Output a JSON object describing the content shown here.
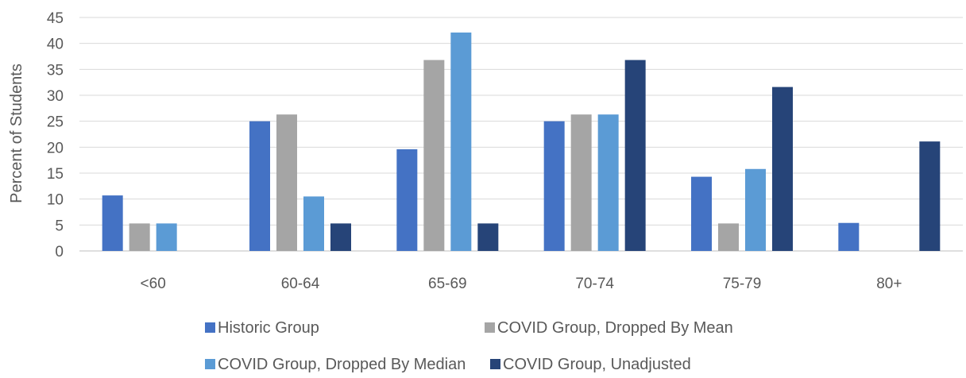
{
  "chart_data": {
    "type": "bar",
    "title": "",
    "xlabel": "",
    "ylabel": "Percent of Students",
    "ylim": [
      0,
      45
    ],
    "yticks": [
      0,
      5,
      10,
      15,
      20,
      25,
      30,
      35,
      40,
      45
    ],
    "grid": true,
    "legend_position": "bottom",
    "categories": [
      "<60",
      "60-64",
      "65-69",
      "70-74",
      "75-79",
      "80+"
    ],
    "series": [
      {
        "name": "Historic Group",
        "color": "#4472C4",
        "values": [
          10.7,
          25.0,
          19.6,
          25.0,
          14.3,
          5.4
        ]
      },
      {
        "name": "COVID Group, Dropped By Mean",
        "color": "#A5A5A5",
        "values": [
          5.3,
          26.3,
          36.8,
          26.3,
          5.3,
          0
        ]
      },
      {
        "name": "COVID Group, Dropped By Median",
        "color": "#5B9BD5",
        "values": [
          5.3,
          10.5,
          42.1,
          26.3,
          15.8,
          0
        ]
      },
      {
        "name": "COVID Group, Unadjusted",
        "color": "#264478",
        "values": [
          0,
          5.3,
          5.3,
          36.8,
          31.6,
          21.1
        ]
      }
    ]
  }
}
